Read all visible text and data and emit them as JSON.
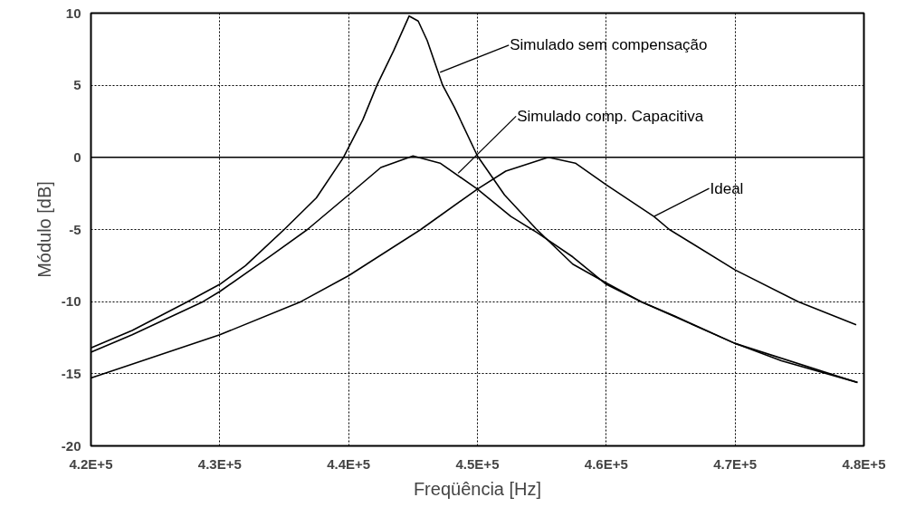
{
  "chart_data": {
    "type": "line",
    "xlabel": "Freqüência [Hz]",
    "ylabel": "Módulo [dB]",
    "xlim": [
      420000,
      480000
    ],
    "xticks": [
      {
        "value": 420000,
        "label": "4.2E+5"
      },
      {
        "value": 430000,
        "label": "4.3E+5"
      },
      {
        "value": 440000,
        "label": "4.4E+5"
      },
      {
        "value": 450000,
        "label": "4.5E+5"
      },
      {
        "value": 460000,
        "label": "4.6E+5"
      },
      {
        "value": 470000,
        "label": "4.7E+5"
      },
      {
        "value": 480000,
        "label": "4.8E+5"
      }
    ],
    "ylim": [
      -20,
      10
    ],
    "yticks": [
      -20,
      -15,
      -10,
      -5,
      0,
      5,
      10
    ],
    "grid": true,
    "line_style": "solid",
    "ref_lines": [
      {
        "axis": "y",
        "value": 0,
        "color": "#000000",
        "line_style": "solid"
      }
    ],
    "series": [
      {
        "color": "#000000",
        "x": [
          420000,
          423200,
          427500,
          430000,
          432000,
          435000,
          437500,
          439600,
          441100,
          442200,
          443500,
          444700,
          445400,
          446100,
          447300,
          448200,
          450000,
          452100,
          454600,
          457400,
          460000,
          462700,
          465300,
          470000,
          473600,
          479500
        ],
        "values": [
          -13.2,
          -12.0,
          -10.0,
          -8.8,
          -7.5,
          -5.0,
          -2.8,
          0,
          2.6,
          5.0,
          7.4,
          9.8,
          9.45,
          8.1,
          5.0,
          3.5,
          0.1,
          -2.6,
          -5.0,
          -7.4,
          -8.7,
          -10.0,
          -11.0,
          -12.9,
          -14.1,
          -15.6
        ]
      },
      {
        "color": "#000000",
        "x": [
          420000,
          423200,
          428700,
          430000,
          434000,
          436800,
          440000,
          442500,
          445000,
          447100,
          450000,
          452600,
          454600,
          457400,
          460000,
          462700,
          470000,
          479500
        ],
        "values": [
          -13.5,
          -12.3,
          -10.0,
          -9.3,
          -6.8,
          -5.0,
          -2.6,
          -0.7,
          0.1,
          -0.4,
          -2.2,
          -4.1,
          -5.2,
          -6.9,
          -8.8,
          -10.0,
          -12.9,
          -15.6
        ]
      },
      {
        "color": "#000000",
        "x": [
          420000,
          430000,
          436300,
          440000,
          445600,
          450000,
          452200,
          455500,
          457600,
          460000,
          463700,
          464900,
          470000,
          474900,
          479400
        ],
        "values": [
          -15.3,
          -12.3,
          -10.0,
          -8.2,
          -5.0,
          -2.2,
          -0.95,
          0,
          -0.4,
          -1.9,
          -4.1,
          -5.0,
          -7.8,
          -10.0,
          -11.6
        ]
      }
    ],
    "annotations": [
      {
        "text": "Simulado sem compensação",
        "x": 447100,
        "y": 5.9
      },
      {
        "text": "Simulado comp. Capacitiva",
        "x": 448500,
        "y": -1.1
      },
      {
        "text": "Ideal",
        "x": 463700,
        "y": -4.1
      }
    ]
  }
}
